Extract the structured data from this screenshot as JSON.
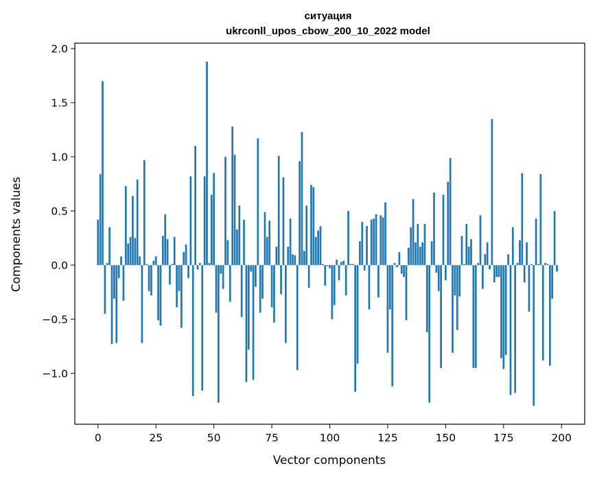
{
  "chart_data": {
    "type": "bar",
    "title": "ситуация",
    "subtitle": "ukrconll_upos_cbow_200_10_2022 model",
    "xlabel": "Vector components",
    "ylabel": "Components values",
    "xlim": [
      -10,
      210
    ],
    "ylim": [
      -1.47,
      2.05
    ],
    "xticks": [
      0,
      25,
      50,
      75,
      100,
      125,
      150,
      175,
      200
    ],
    "yticks": [
      -1.0,
      -0.5,
      0.0,
      0.5,
      1.0,
      1.5,
      2.0
    ],
    "ytick_labels": [
      "−1.0",
      "−0.5",
      "0.0",
      "0.5",
      "1.0",
      "1.5",
      "2.0"
    ],
    "bar_color": "#1f77b4",
    "bar_width": 0.8,
    "values": [
      0.42,
      0.84,
      1.7,
      -0.45,
      0.02,
      0.35,
      -0.73,
      -0.31,
      -0.72,
      -0.12,
      0.08,
      -0.33,
      0.73,
      0.2,
      0.26,
      0.64,
      0.25,
      0.79,
      0.08,
      -0.72,
      0.97,
      0.01,
      -0.24,
      -0.28,
      0.04,
      0.08,
      -0.51,
      -0.56,
      0.27,
      0.47,
      0.24,
      -0.18,
      0.01,
      0.26,
      -0.39,
      -0.24,
      -0.58,
      0.12,
      0.19,
      -0.12,
      0.82,
      -1.21,
      1.1,
      -0.04,
      0.02,
      -1.16,
      0.82,
      1.88,
      0.02,
      0.65,
      0.85,
      -0.44,
      -1.27,
      -0.08,
      -0.22,
      1.0,
      0.23,
      -0.34,
      1.28,
      1.02,
      0.33,
      0.55,
      -0.48,
      0.42,
      -1.08,
      -0.78,
      -0.06,
      -1.06,
      -0.2,
      1.17,
      -0.44,
      -0.31,
      0.49,
      0.26,
      0.41,
      -0.39,
      -0.53,
      0.17,
      1.01,
      -0.27,
      0.81,
      -0.72,
      0.17,
      0.43,
      0.1,
      0.09,
      -0.97,
      0.96,
      1.23,
      0.13,
      0.55,
      -0.21,
      0.74,
      0.72,
      0.26,
      0.32,
      0.36,
      0.01,
      -0.19,
      -0.01,
      -0.03,
      -0.5,
      -0.37,
      0.05,
      -0.14,
      0.03,
      0.04,
      -0.28,
      0.5,
      0.01,
      0.01,
      -1.17,
      -0.91,
      0.22,
      0.4,
      -0.05,
      0.36,
      -0.41,
      0.42,
      0.43,
      0.47,
      -0.3,
      0.46,
      0.44,
      0.58,
      -0.81,
      -0.41,
      -1.12,
      0.02,
      -0.02,
      0.12,
      -0.08,
      -0.11,
      -0.51,
      0.16,
      0.35,
      0.61,
      0.21,
      0.38,
      0.17,
      0.21,
      0.38,
      -0.62,
      -1.27,
      0.22,
      0.67,
      -0.07,
      -0.24,
      -0.95,
      0.65,
      -0.14,
      0.77,
      0.99,
      -0.81,
      -0.28,
      -0.6,
      -0.29,
      0.27,
      0.01,
      0.38,
      0.17,
      0.24,
      -0.95,
      -0.95,
      0.02,
      0.46,
      -0.22,
      0.1,
      0.21,
      -0.04,
      1.35,
      -0.16,
      -0.11,
      -0.11,
      -0.86,
      -0.96,
      -0.83,
      0.1,
      -1.2,
      0.35,
      -1.18,
      0.02,
      0.23,
      0.85,
      -0.16,
      0.21,
      -0.43,
      0.01,
      -1.3,
      0.43,
      0.01,
      0.84,
      -0.88,
      0.02,
      0.01,
      -0.93,
      -0.31,
      0.5,
      -0.06
    ]
  }
}
